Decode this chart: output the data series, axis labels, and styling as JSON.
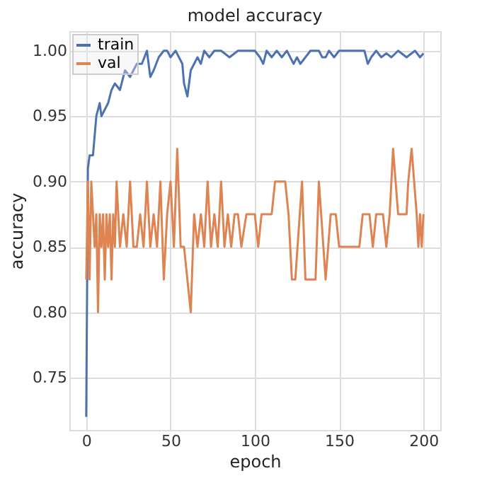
{
  "chart_data": {
    "type": "line",
    "title": "model accuracy",
    "xlabel": "epoch",
    "ylabel": "accuracy",
    "xlim": [
      -10,
      210
    ],
    "ylim": [
      0.71,
      1.015
    ],
    "xticks": [
      0,
      50,
      100,
      150,
      200
    ],
    "yticks": [
      {
        "value": 0.75,
        "label": "0.75"
      },
      {
        "value": 0.8,
        "label": "0.80"
      },
      {
        "value": 0.85,
        "label": "0.85"
      },
      {
        "value": 0.9,
        "label": "0.90"
      },
      {
        "value": 0.95,
        "label": "0.95"
      },
      {
        "value": 1.0,
        "label": "1.00"
      }
    ],
    "grid": true,
    "legend": "top left",
    "series": [
      {
        "name": "train",
        "color": "#4c72b0",
        "x": [
          0,
          1,
          2,
          4,
          6,
          8,
          9,
          11,
          13,
          15,
          17,
          20,
          23,
          26,
          30,
          33,
          36,
          38,
          40,
          43,
          46,
          48,
          50,
          53,
          55,
          57,
          58,
          59,
          60,
          62,
          64,
          66,
          68,
          70,
          73,
          76,
          80,
          85,
          90,
          95,
          100,
          103,
          105,
          107,
          110,
          113,
          116,
          119,
          121,
          123,
          125,
          127,
          130,
          133,
          138,
          140,
          142,
          144,
          147,
          150,
          155,
          160,
          165,
          167,
          169,
          172,
          175,
          178,
          181,
          185,
          190,
          195,
          198,
          200
        ],
        "values": [
          0.72,
          0.91,
          0.92,
          0.92,
          0.95,
          0.96,
          0.95,
          0.955,
          0.96,
          0.97,
          0.975,
          0.97,
          0.985,
          0.98,
          0.99,
          0.99,
          1.0,
          0.98,
          0.985,
          0.995,
          1.0,
          1.0,
          0.995,
          1.0,
          0.995,
          0.99,
          0.975,
          0.97,
          0.965,
          0.985,
          0.99,
          0.995,
          0.99,
          1.0,
          0.995,
          1.0,
          1.0,
          0.995,
          1.0,
          1.0,
          1.0,
          0.995,
          0.99,
          1.0,
          0.995,
          1.0,
          0.995,
          1.0,
          0.995,
          0.99,
          0.995,
          0.99,
          0.995,
          1.0,
          1.0,
          0.995,
          0.995,
          1.0,
          0.995,
          1.0,
          1.0,
          1.0,
          1.0,
          0.99,
          0.995,
          1.0,
          0.995,
          0.998,
          0.995,
          1.0,
          0.995,
          1.0,
          0.995,
          0.998
        ]
      },
      {
        "name": "val",
        "color": "#dd8452",
        "x": [
          0,
          1,
          2,
          3,
          4,
          5,
          6,
          7,
          8,
          9,
          10,
          11,
          12,
          13,
          14,
          15,
          16,
          17,
          18,
          20,
          22,
          24,
          26,
          28,
          30,
          32,
          34,
          36,
          38,
          40,
          42,
          44,
          46,
          48,
          50,
          52,
          54,
          56,
          58,
          60,
          62,
          64,
          66,
          68,
          70,
          72,
          74,
          76,
          78,
          80,
          82,
          84,
          86,
          88,
          90,
          92,
          95,
          100,
          102,
          104,
          110,
          112,
          118,
          120,
          122,
          124,
          128,
          130,
          136,
          138,
          142,
          145,
          148,
          150,
          162,
          164,
          168,
          170,
          172,
          176,
          178,
          180,
          182,
          185,
          190,
          191,
          193,
          196,
          197,
          198,
          199,
          200
        ],
        "values": [
          0.825,
          0.9,
          0.825,
          0.9,
          0.875,
          0.85,
          0.875,
          0.8,
          0.875,
          0.85,
          0.875,
          0.825,
          0.875,
          0.85,
          0.875,
          0.825,
          0.875,
          0.85,
          0.9,
          0.85,
          0.875,
          0.85,
          0.9,
          0.85,
          0.85,
          0.875,
          0.85,
          0.9,
          0.85,
          0.875,
          0.85,
          0.9,
          0.825,
          0.875,
          0.9,
          0.85,
          0.925,
          0.85,
          0.85,
          0.825,
          0.8,
          0.875,
          0.85,
          0.875,
          0.85,
          0.9,
          0.85,
          0.875,
          0.85,
          0.9,
          0.85,
          0.875,
          0.85,
          0.875,
          0.875,
          0.85,
          0.875,
          0.875,
          0.85,
          0.875,
          0.875,
          0.9,
          0.9,
          0.875,
          0.825,
          0.825,
          0.9,
          0.825,
          0.825,
          0.9,
          0.825,
          0.875,
          0.875,
          0.85,
          0.85,
          0.875,
          0.875,
          0.85,
          0.875,
          0.875,
          0.85,
          0.875,
          0.925,
          0.875,
          0.875,
          0.9,
          0.925,
          0.875,
          0.85,
          0.875,
          0.85,
          0.875
        ]
      }
    ]
  }
}
